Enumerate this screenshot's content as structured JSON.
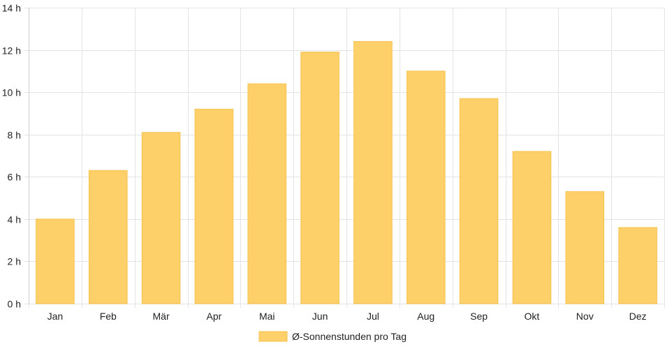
{
  "chart_data": {
    "type": "bar",
    "categories": [
      "Jan",
      "Feb",
      "Mär",
      "Apr",
      "Mai",
      "Jun",
      "Jul",
      "Aug",
      "Sep",
      "Okt",
      "Nov",
      "Dez"
    ],
    "series": [
      {
        "name": "Ø-Sonnenstunden pro Tag",
        "color": "#fdd06a",
        "values": [
          4.0,
          6.3,
          8.1,
          9.2,
          10.4,
          11.9,
          12.4,
          11.0,
          9.7,
          7.2,
          5.3,
          3.6
        ]
      }
    ],
    "ylim": [
      0,
      14
    ],
    "yticks": [
      0,
      2,
      4,
      6,
      8,
      10,
      12,
      14
    ],
    "y_tick_suffix": " h",
    "grid": true,
    "legend_position": "bottom"
  }
}
